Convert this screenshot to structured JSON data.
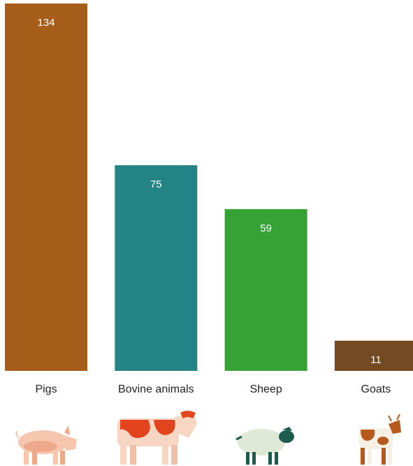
{
  "chart_data": {
    "type": "bar",
    "categories": [
      "Pigs",
      "Bovine animals",
      "Sheep",
      "Goats"
    ],
    "values": [
      134,
      75,
      59,
      11
    ],
    "colors": [
      "#a65d1a",
      "#238385",
      "#36a135",
      "#744a22"
    ]
  }
}
